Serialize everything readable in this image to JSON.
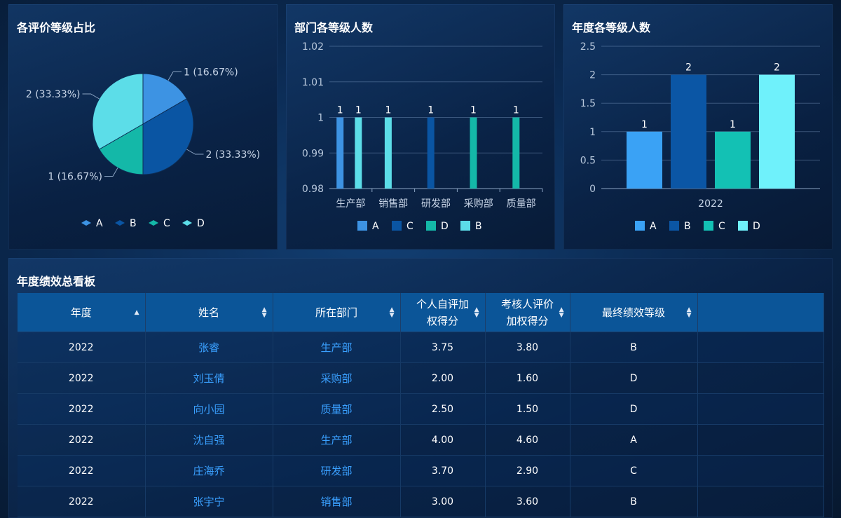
{
  "panels": {
    "pie_title": "各评价等级占比",
    "dept_title": "部门各等级人数",
    "year_title": "年度各等级人数",
    "board_title": "年度绩效总看板"
  },
  "colors": {
    "A": "#3d93e3",
    "B": "#0a55a3",
    "C": "#14b8a8",
    "D": "#5cdde8",
    "year_A": "#3aa2f5",
    "year_B": "#0b56a5",
    "year_C": "#13c1b4",
    "year_D": "#6ff1fb"
  },
  "chart_data": [
    {
      "type": "pie",
      "title": "各评价等级占比",
      "slices": [
        {
          "name": "A",
          "value": 1,
          "label": "1 (16.67%)"
        },
        {
          "name": "B",
          "value": 2,
          "label": "2 (33.33%)"
        },
        {
          "name": "C",
          "value": 1,
          "label": "1 (16.67%)"
        },
        {
          "name": "D",
          "value": 2,
          "label": "2 (33.33%)"
        }
      ],
      "legend": [
        "A",
        "B",
        "C",
        "D"
      ],
      "legend_position": "bottom"
    },
    {
      "type": "bar",
      "title": "部门各等级人数",
      "categories": [
        "生产部",
        "销售部",
        "研发部",
        "采购部",
        "质量部"
      ],
      "series": [
        {
          "name": "A",
          "values": [
            1,
            null,
            null,
            null,
            null
          ]
        },
        {
          "name": "C",
          "values": [
            null,
            null,
            1,
            null,
            null
          ]
        },
        {
          "name": "D",
          "values": [
            null,
            null,
            null,
            1,
            1
          ]
        },
        {
          "name": "B",
          "values": [
            1,
            1,
            null,
            null,
            null
          ]
        }
      ],
      "bars": [
        {
          "category": "生产部",
          "series": "A",
          "value": 1
        },
        {
          "category": "生产部",
          "series": "B",
          "value": 1
        },
        {
          "category": "销售部",
          "series": "B",
          "value": 1
        },
        {
          "category": "研发部",
          "series": "C",
          "value": 1
        },
        {
          "category": "采购部",
          "series": "D",
          "value": 1
        },
        {
          "category": "质量部",
          "series": "D",
          "value": 1
        }
      ],
      "yticks": [
        "0.98",
        "0.99",
        "1",
        "1.01",
        "1.02"
      ],
      "ylim": [
        0.98,
        1.02
      ],
      "grid": true,
      "legend": [
        "A",
        "C",
        "D",
        "B"
      ],
      "legend_position": "bottom"
    },
    {
      "type": "bar",
      "title": "年度各等级人数",
      "categories": [
        "2022"
      ],
      "series": [
        {
          "name": "A",
          "values": [
            1
          ]
        },
        {
          "name": "B",
          "values": [
            2
          ]
        },
        {
          "name": "C",
          "values": [
            1
          ]
        },
        {
          "name": "D",
          "values": [
            2
          ]
        }
      ],
      "yticks": [
        "0",
        "0.5",
        "1",
        "1.5",
        "2",
        "2.5"
      ],
      "ylim": [
        0,
        2.5
      ],
      "grid": true,
      "legend": [
        "A",
        "B",
        "C",
        "D"
      ],
      "legend_position": "bottom"
    }
  ],
  "table": {
    "columns": [
      {
        "label": "年度",
        "sort": "asc"
      },
      {
        "label": "姓名",
        "sort": "both"
      },
      {
        "label": "所在部门",
        "sort": "both"
      },
      {
        "label": "个人自评加权得分",
        "sort": "both"
      },
      {
        "label": "考核人评价加权得分",
        "sort": "both"
      },
      {
        "label": "最终绩效等级",
        "sort": "both"
      },
      {
        "label": "",
        "sort": "none"
      }
    ],
    "rows": [
      {
        "year": "2022",
        "name": "张睿",
        "dept": "生产部",
        "self": "3.75",
        "review": "3.80",
        "grade": "B"
      },
      {
        "year": "2022",
        "name": "刘玉倩",
        "dept": "采购部",
        "self": "2.00",
        "review": "1.60",
        "grade": "D"
      },
      {
        "year": "2022",
        "name": "向小园",
        "dept": "质量部",
        "self": "2.50",
        "review": "1.50",
        "grade": "D"
      },
      {
        "year": "2022",
        "name": "沈自强",
        "dept": "生产部",
        "self": "4.00",
        "review": "4.60",
        "grade": "A"
      },
      {
        "year": "2022",
        "name": "庄海乔",
        "dept": "研发部",
        "self": "3.70",
        "review": "2.90",
        "grade": "C"
      },
      {
        "year": "2022",
        "name": "张宇宁",
        "dept": "销售部",
        "self": "3.00",
        "review": "3.60",
        "grade": "B"
      }
    ]
  }
}
